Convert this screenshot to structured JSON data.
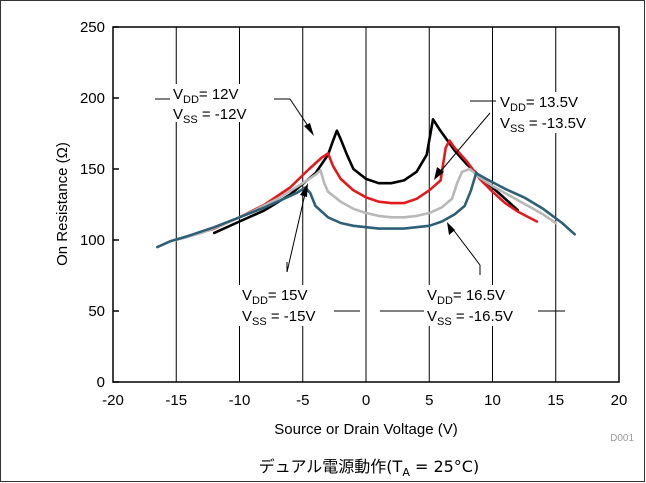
{
  "chart_data": {
    "type": "line",
    "xlabel": "Source or Drain Voltage (V)",
    "ylabel": "On Resistance (Ω)",
    "xlim": [
      -20,
      20
    ],
    "ylim": [
      0,
      250
    ],
    "xticks": [
      -20,
      -15,
      -10,
      -5,
      0,
      5,
      10,
      15,
      20
    ],
    "yticks": [
      0,
      50,
      100,
      150,
      200,
      250
    ],
    "grid": "vertical",
    "series": [
      {
        "id": "vdd12",
        "color": "#000000",
        "points": [
          [
            -12,
            105
          ],
          [
            -10,
            113
          ],
          [
            -8,
            121
          ],
          [
            -6,
            132
          ],
          [
            -4,
            147
          ],
          [
            -3,
            160
          ],
          [
            -2.6,
            170
          ],
          [
            -2.3,
            177
          ],
          [
            -2,
            171
          ],
          [
            -1.5,
            160
          ],
          [
            -1,
            150
          ],
          [
            0,
            143
          ],
          [
            1,
            140
          ],
          [
            2,
            140
          ],
          [
            3,
            142
          ],
          [
            4,
            148
          ],
          [
            4.8,
            160
          ],
          [
            5.3,
            185
          ],
          [
            5.8,
            178
          ],
          [
            7,
            163
          ],
          [
            8,
            153
          ],
          [
            9,
            145
          ],
          [
            10,
            137
          ],
          [
            11,
            129
          ],
          [
            12,
            121
          ]
        ]
      },
      {
        "id": "vdd13_5",
        "color": "#e31a1c",
        "points": [
          [
            -13.5,
            104
          ],
          [
            -12,
            108
          ],
          [
            -10,
            116
          ],
          [
            -8,
            125
          ],
          [
            -6,
            137
          ],
          [
            -4.5,
            150
          ],
          [
            -3.5,
            158
          ],
          [
            -3,
            161
          ],
          [
            -2.6,
            152
          ],
          [
            -2,
            143
          ],
          [
            -1,
            135
          ],
          [
            0,
            130
          ],
          [
            1,
            127
          ],
          [
            2,
            126
          ],
          [
            3,
            126
          ],
          [
            4,
            129
          ],
          [
            5,
            135
          ],
          [
            5.9,
            142
          ],
          [
            6.3,
            165
          ],
          [
            6.6,
            170
          ],
          [
            7,
            165
          ],
          [
            8,
            155
          ],
          [
            9,
            143
          ],
          [
            10,
            134
          ],
          [
            11,
            126
          ],
          [
            12,
            120
          ],
          [
            13.5,
            113
          ]
        ]
      },
      {
        "id": "vdd15",
        "color": "#b8b8b8",
        "points": [
          [
            -15,
            100
          ],
          [
            -13,
            105
          ],
          [
            -11,
            112
          ],
          [
            -9,
            120
          ],
          [
            -7,
            129
          ],
          [
            -5,
            140
          ],
          [
            -4,
            146
          ],
          [
            -3.6,
            149
          ],
          [
            -3.3,
            140
          ],
          [
            -3,
            134
          ],
          [
            -2,
            127
          ],
          [
            -1,
            122
          ],
          [
            0,
            119
          ],
          [
            1,
            117
          ],
          [
            2,
            116
          ],
          [
            3,
            116
          ],
          [
            4,
            117
          ],
          [
            5,
            119
          ],
          [
            6,
            123
          ],
          [
            6.8,
            129
          ],
          [
            7.2,
            140
          ],
          [
            7.6,
            148
          ],
          [
            8.2,
            150
          ],
          [
            9,
            144
          ],
          [
            10,
            138
          ],
          [
            11,
            133
          ],
          [
            12,
            128
          ],
          [
            13,
            123
          ],
          [
            14,
            118
          ],
          [
            15,
            112
          ]
        ]
      },
      {
        "id": "vdd16_5",
        "color": "#2d6077",
        "points": [
          [
            -16.5,
            95
          ],
          [
            -15.5,
            99
          ],
          [
            -14,
            103
          ],
          [
            -12,
            109
          ],
          [
            -10,
            116
          ],
          [
            -8,
            123
          ],
          [
            -6.5,
            129
          ],
          [
            -5.5,
            133
          ],
          [
            -4.8,
            137
          ],
          [
            -4.4,
            133
          ],
          [
            -4,
            124
          ],
          [
            -3,
            116
          ],
          [
            -2,
            112
          ],
          [
            -1,
            110
          ],
          [
            0,
            109
          ],
          [
            1,
            108
          ],
          [
            2,
            108
          ],
          [
            3,
            108
          ],
          [
            4,
            109
          ],
          [
            5,
            110
          ],
          [
            6,
            113
          ],
          [
            7,
            118
          ],
          [
            7.8,
            124
          ],
          [
            8.3,
            135
          ],
          [
            8.7,
            147
          ],
          [
            9.5,
            143
          ],
          [
            11,
            136
          ],
          [
            12.5,
            130
          ],
          [
            14,
            122
          ],
          [
            15.5,
            112
          ],
          [
            16.5,
            104
          ]
        ]
      }
    ]
  },
  "annotations": {
    "a12_vdd_main": "V",
    "a12_vdd_sub": "DD",
    "a12_vdd_val": "= 12V",
    "a12_vss_main": "V",
    "a12_vss_sub": "SS",
    "a12_vss_val": " = -12V",
    "a135_vdd_main": "V",
    "a135_vdd_sub": "DD",
    "a135_vdd_val": "= 13.5V",
    "a135_vss_main": "V",
    "a135_vss_sub": "SS",
    "a135_vss_val": " = -13.5V",
    "a15_vdd_main": "V",
    "a15_vdd_sub": "DD",
    "a15_vdd_val": "= 15V",
    "a15_vss_main": "V",
    "a15_vss_sub": "SS",
    "a15_vss_val": " = -15V",
    "a165_vdd_main": "V",
    "a165_vdd_sub": "DD",
    "a165_vdd_val": "= 16.5V",
    "a165_vss_main": "V",
    "a165_vss_sub": "SS",
    "a165_vss_val": " = -16.5V"
  },
  "figure_code": "D001",
  "caption": {
    "prefix": "デュアル電源動作(T",
    "sub": "A",
    "suffix": " = 25°C)"
  }
}
